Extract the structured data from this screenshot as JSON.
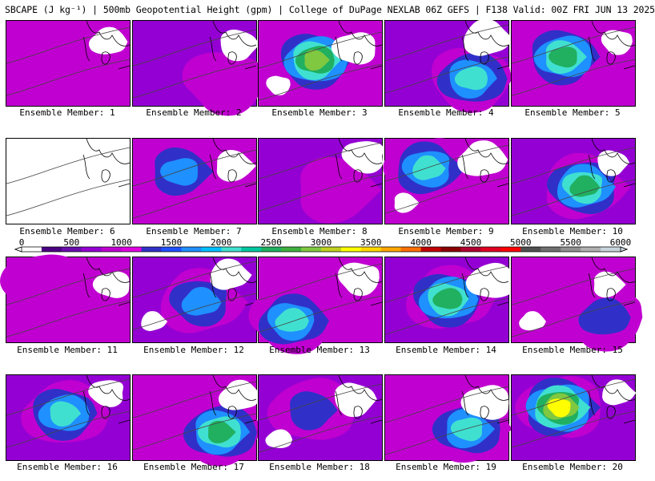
{
  "title": "SBCAPE (J kg⁻¹) | 500mb Geopotential Height (gpm) | College of DuPage NEXLAB 06Z GEFS | F138 Valid: 00Z FRI JUN 13 2025",
  "member_label_prefix": "Ensemble Member:",
  "members": [
    {
      "id": "1",
      "peak_level": 5
    },
    {
      "id": "2",
      "peak_level": 5
    },
    {
      "id": "3",
      "peak_level": 14
    },
    {
      "id": "4",
      "peak_level": 10
    },
    {
      "id": "5",
      "peak_level": 12
    },
    {
      "id": "6",
      "peak_level": 3
    },
    {
      "id": "7",
      "peak_level": 8
    },
    {
      "id": "8",
      "peak_level": 5
    },
    {
      "id": "9",
      "peak_level": 10
    },
    {
      "id": "10",
      "peak_level": 13
    },
    {
      "id": "11",
      "peak_level": 5
    },
    {
      "id": "12",
      "peak_level": 9
    },
    {
      "id": "13",
      "peak_level": 10
    },
    {
      "id": "14",
      "peak_level": 13
    },
    {
      "id": "15",
      "peak_level": 6
    },
    {
      "id": "16",
      "peak_level": 10
    },
    {
      "id": "17",
      "peak_level": 12
    },
    {
      "id": "18",
      "peak_level": 7
    },
    {
      "id": "19",
      "peak_level": 10
    },
    {
      "id": "20",
      "peak_level": 16
    }
  ],
  "colorbar": {
    "ticks": [
      "0",
      "500",
      "1000",
      "1500",
      "2000",
      "2500",
      "3000",
      "3500",
      "4000",
      "4500",
      "5000",
      "5500",
      "6000"
    ],
    "colors": [
      "#ffffff",
      "#4b0082",
      "#6a0dad",
      "#9400d3",
      "#c000d0",
      "#e000e0",
      "#3030c8",
      "#2050ff",
      "#1e90ff",
      "#00bfff",
      "#40e0d0",
      "#00c8a0",
      "#20b060",
      "#40b040",
      "#80c840",
      "#c0d020",
      "#ffff00",
      "#ffd700",
      "#ffa500",
      "#ff7000",
      "#c00000",
      "#8b0000",
      "#b00030",
      "#e00020",
      "#ff0000",
      "#505050",
      "#707070",
      "#909090",
      "#b0b0b0",
      "#c8d4dc"
    ]
  }
}
